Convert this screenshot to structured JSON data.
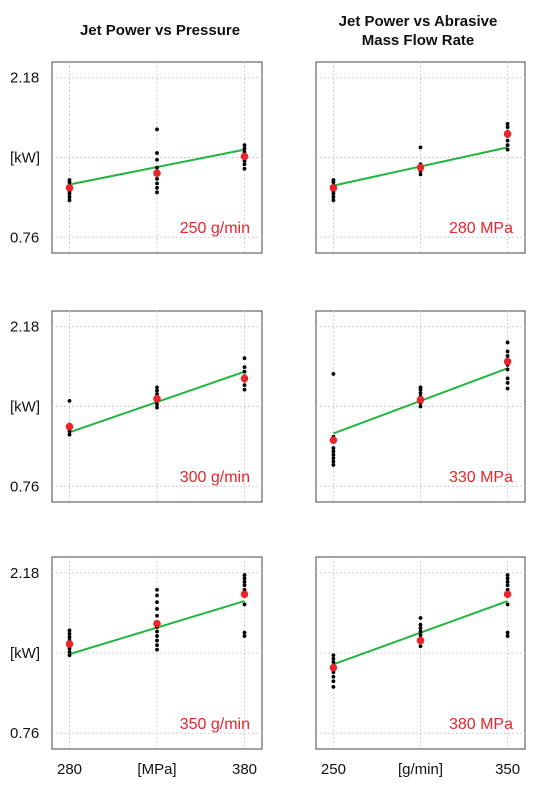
{
  "figure": {
    "column_titles": [
      "Jet Power vs Pressure",
      "Jet Power vs Abrasive\nMass Flow Rate"
    ],
    "y_ticks": [
      {
        "value": 2.18,
        "label": "2.18"
      },
      {
        "value": 1.47,
        "label": "[kW]"
      },
      {
        "value": 0.76,
        "label": "0.76"
      }
    ],
    "columns": [
      {
        "x_ticks": [
          {
            "value": 280,
            "label": "280"
          },
          {
            "value": 330,
            "label": "[MPa]"
          },
          {
            "value": 380,
            "label": "380"
          }
        ]
      },
      {
        "x_ticks": [
          {
            "value": 250,
            "label": "250"
          },
          {
            "value": 300,
            "label": "[g/min]"
          },
          {
            "value": 350,
            "label": "350"
          }
        ]
      }
    ],
    "colors": {
      "raw_points": "#000000",
      "mean_points": "#e8262b",
      "fit_line": "#22b540",
      "annotation": "#e8262b"
    }
  },
  "chart_data": [
    {
      "type": "scatter",
      "row": 0,
      "col": 0,
      "annotation": "250 g/min",
      "xlim": [
        270,
        390
      ],
      "ylim": [
        0.62,
        2.32
      ],
      "grid": true,
      "raw": [
        {
          "x": 280,
          "y": [
            1.09,
            1.12,
            1.15,
            1.17,
            1.2,
            1.22,
            1.25,
            1.27
          ]
        },
        {
          "x": 330,
          "y": [
            1.16,
            1.2,
            1.24,
            1.28,
            1.33,
            1.38,
            1.45,
            1.51,
            1.72
          ]
        },
        {
          "x": 380,
          "y": [
            1.37,
            1.41,
            1.44,
            1.46,
            1.49,
            1.52,
            1.55,
            1.58
          ]
        }
      ],
      "mean": [
        {
          "x": 280,
          "y": 1.2
        },
        {
          "x": 330,
          "y": 1.33
        },
        {
          "x": 380,
          "y": 1.48
        }
      ],
      "fit": [
        [
          280,
          1.23
        ],
        [
          380,
          1.54
        ]
      ]
    },
    {
      "type": "scatter",
      "row": 0,
      "col": 1,
      "annotation": "280 MPa",
      "xlim": [
        240,
        360
      ],
      "ylim": [
        0.62,
        2.32
      ],
      "grid": true,
      "raw": [
        {
          "x": 250,
          "y": [
            1.09,
            1.12,
            1.15,
            1.17,
            1.2,
            1.22,
            1.25,
            1.27
          ]
        },
        {
          "x": 300,
          "y": [
            1.32,
            1.35,
            1.38,
            1.41,
            1.56
          ]
        },
        {
          "x": 350,
          "y": [
            1.54,
            1.58,
            1.62,
            1.66,
            1.7,
            1.74,
            1.77
          ]
        }
      ],
      "mean": [
        {
          "x": 250,
          "y": 1.2
        },
        {
          "x": 300,
          "y": 1.38
        },
        {
          "x": 350,
          "y": 1.68
        }
      ],
      "fit": [
        [
          250,
          1.22
        ],
        [
          350,
          1.56
        ]
      ]
    },
    {
      "type": "scatter",
      "row": 1,
      "col": 0,
      "annotation": "300 g/min",
      "xlim": [
        270,
        390
      ],
      "ylim": [
        0.62,
        2.32
      ],
      "grid": true,
      "raw": [
        {
          "x": 280,
          "y": [
            1.22,
            1.25,
            1.28,
            1.31,
            1.52
          ]
        },
        {
          "x": 330,
          "y": [
            1.46,
            1.49,
            1.52,
            1.55,
            1.58,
            1.61,
            1.64
          ]
        },
        {
          "x": 380,
          "y": [
            1.62,
            1.66,
            1.7,
            1.74,
            1.78,
            1.82,
            1.9
          ]
        }
      ],
      "mean": [
        {
          "x": 280,
          "y": 1.29
        },
        {
          "x": 330,
          "y": 1.54
        },
        {
          "x": 380,
          "y": 1.72
        }
      ],
      "fit": [
        [
          280,
          1.24
        ],
        [
          380,
          1.78
        ]
      ]
    },
    {
      "type": "scatter",
      "row": 1,
      "col": 1,
      "annotation": "330 MPa",
      "xlim": [
        240,
        360
      ],
      "ylim": [
        0.62,
        2.32
      ],
      "grid": true,
      "raw": [
        {
          "x": 250,
          "y": [
            0.95,
            0.98,
            1.01,
            1.04,
            1.07,
            1.1,
            1.16,
            1.2,
            1.76
          ]
        },
        {
          "x": 300,
          "y": [
            1.47,
            1.5,
            1.53,
            1.56,
            1.59,
            1.62,
            1.64
          ]
        },
        {
          "x": 350,
          "y": [
            1.63,
            1.68,
            1.72,
            1.8,
            1.84,
            1.88,
            1.92,
            1.96,
            2.04
          ]
        }
      ],
      "mean": [
        {
          "x": 250,
          "y": 1.17
        },
        {
          "x": 300,
          "y": 1.53
        },
        {
          "x": 350,
          "y": 1.87
        }
      ],
      "fit": [
        [
          250,
          1.23
        ],
        [
          350,
          1.81
        ]
      ]
    },
    {
      "type": "scatter",
      "row": 2,
      "col": 0,
      "annotation": "350 g/min",
      "xlim": [
        270,
        390
      ],
      "ylim": [
        0.62,
        2.32
      ],
      "grid": true,
      "raw": [
        {
          "x": 280,
          "y": [
            1.45,
            1.48,
            1.51,
            1.53,
            1.56,
            1.58,
            1.61,
            1.64,
            1.67
          ]
        },
        {
          "x": 330,
          "y": [
            1.5,
            1.54,
            1.58,
            1.62,
            1.66,
            1.7,
            1.74,
            1.8,
            1.86,
            1.92,
            1.98,
            2.03
          ]
        },
        {
          "x": 380,
          "y": [
            1.62,
            1.65,
            1.9,
            1.98,
            2.03,
            2.07,
            2.1,
            2.13,
            2.16
          ]
        }
      ],
      "mean": [
        {
          "x": 280,
          "y": 1.55
        },
        {
          "x": 330,
          "y": 1.73
        },
        {
          "x": 380,
          "y": 1.99
        }
      ],
      "fit": [
        [
          280,
          1.46
        ],
        [
          380,
          1.93
        ]
      ]
    },
    {
      "type": "scatter",
      "row": 2,
      "col": 1,
      "annotation": "380 MPa",
      "xlim": [
        240,
        360
      ],
      "ylim": [
        0.62,
        2.32
      ],
      "grid": true,
      "raw": [
        {
          "x": 250,
          "y": [
            1.17,
            1.22,
            1.26,
            1.3,
            1.33,
            1.36,
            1.39,
            1.42,
            1.45
          ]
        },
        {
          "x": 300,
          "y": [
            1.53,
            1.57,
            1.6,
            1.63,
            1.66,
            1.69,
            1.72,
            1.78
          ]
        },
        {
          "x": 350,
          "y": [
            1.62,
            1.65,
            1.9,
            1.98,
            2.03,
            2.07,
            2.1,
            2.13,
            2.16
          ]
        }
      ],
      "mean": [
        {
          "x": 250,
          "y": 1.34
        },
        {
          "x": 300,
          "y": 1.58
        },
        {
          "x": 350,
          "y": 1.99
        }
      ],
      "fit": [
        [
          250,
          1.37
        ],
        [
          350,
          1.93
        ]
      ]
    }
  ]
}
